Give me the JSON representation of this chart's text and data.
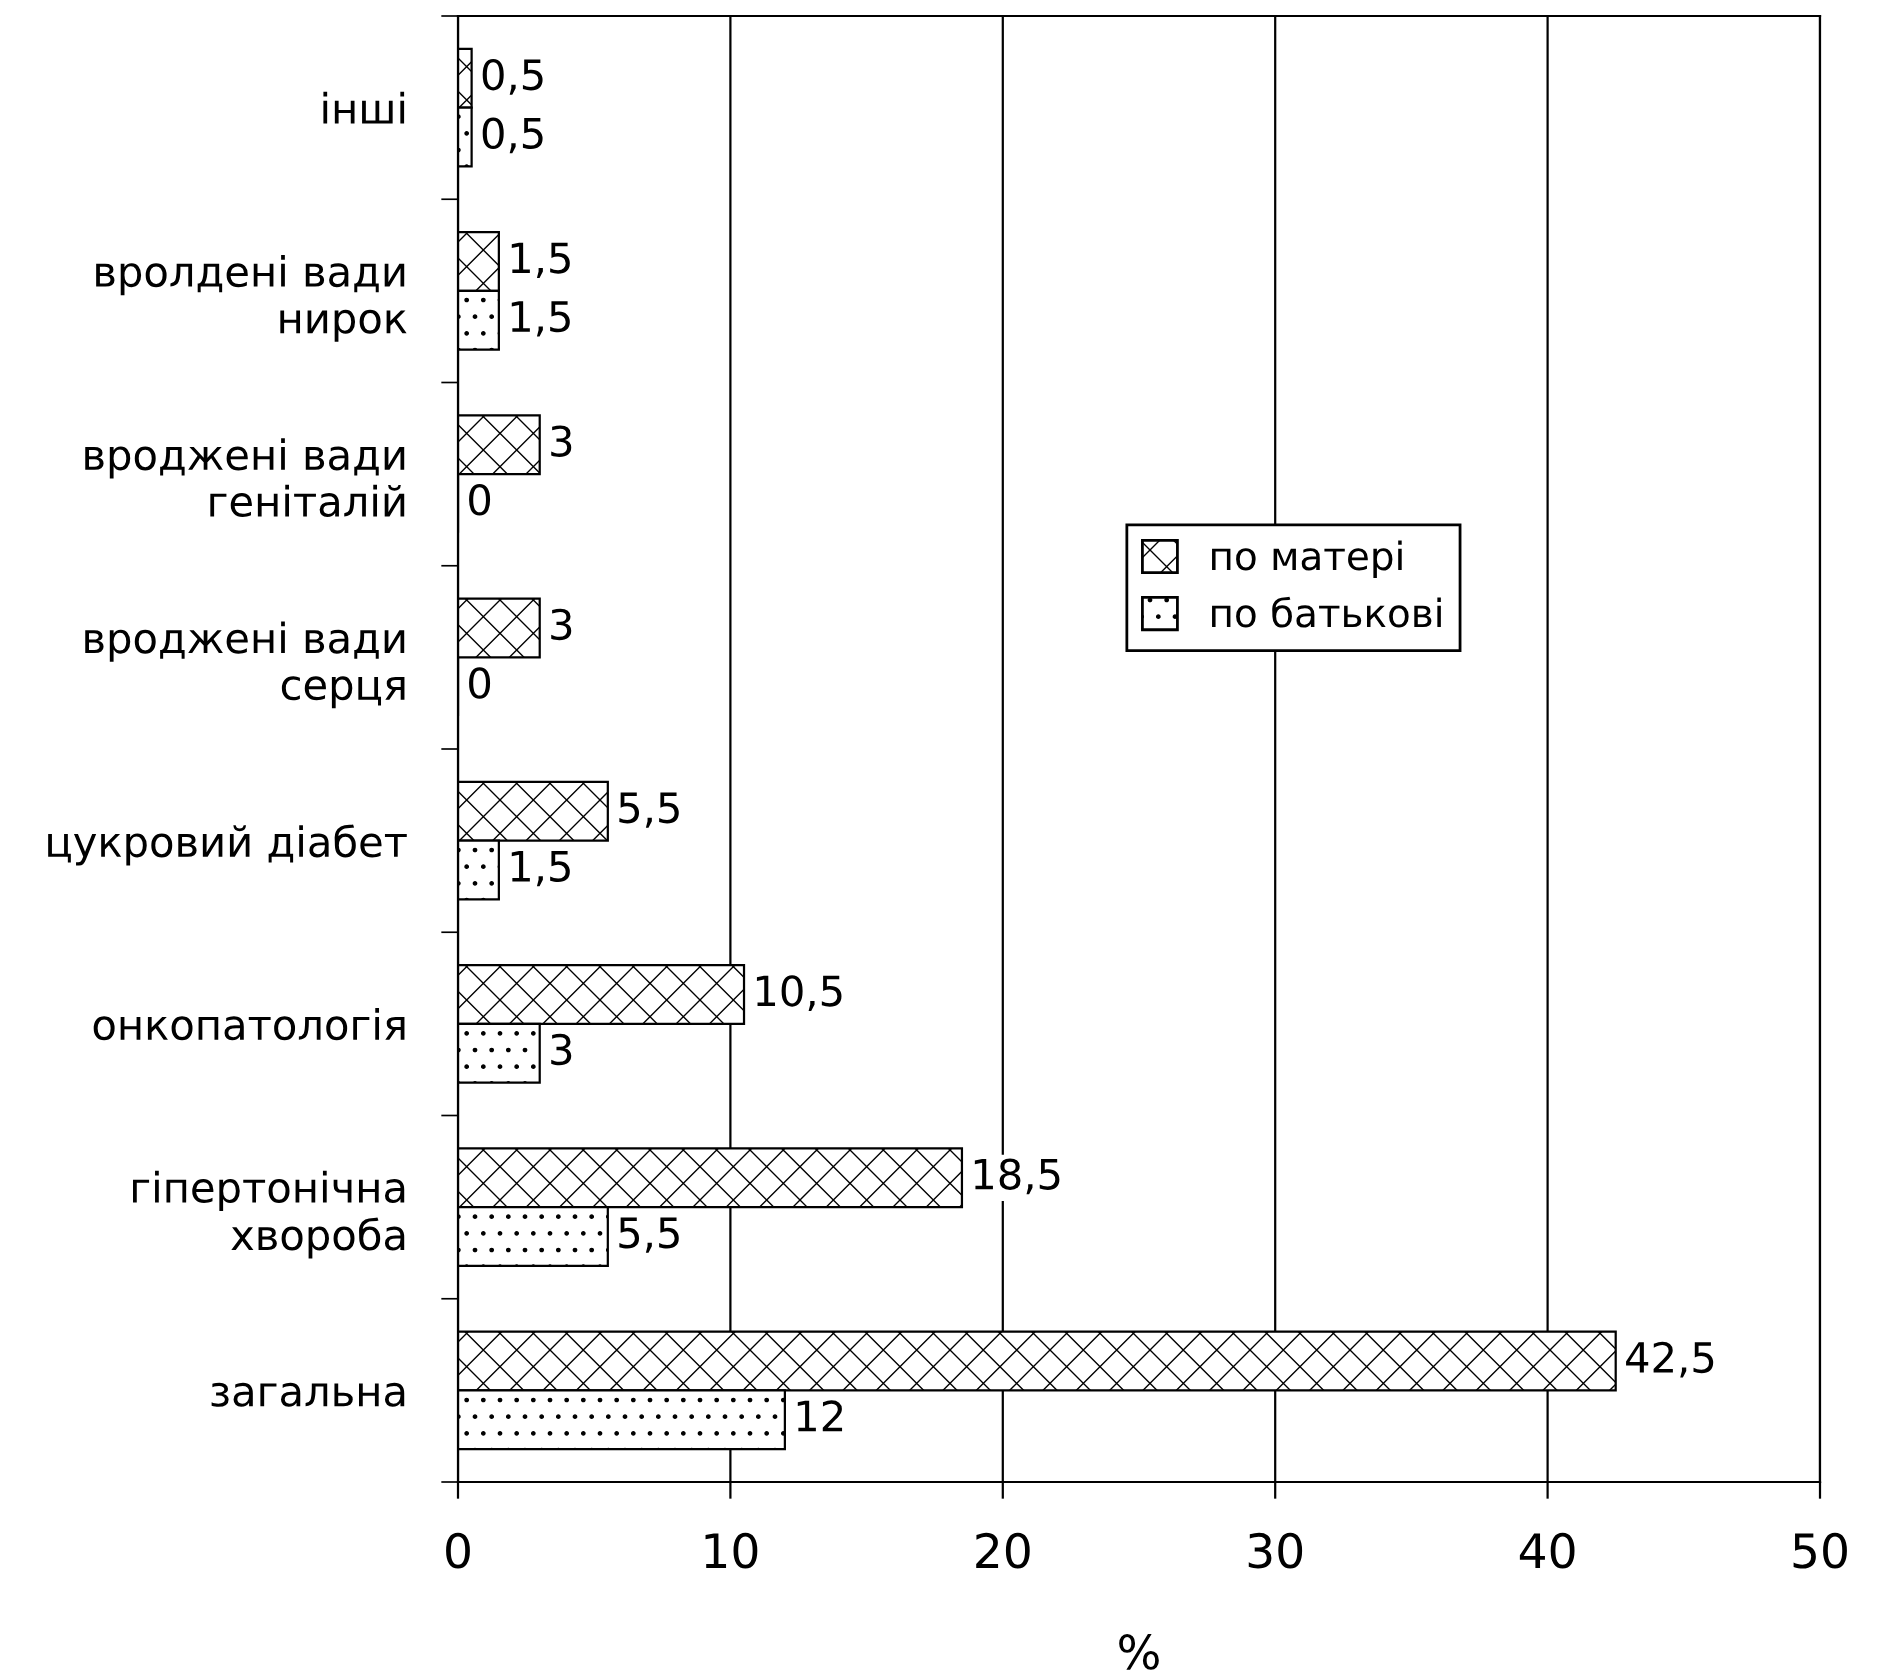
{
  "chart_data": {
    "type": "bar",
    "orientation": "horizontal",
    "xlabel": "%",
    "categories": [
      "інші",
      "вролдені вади\nнирок",
      "вроджені вади\nгеніталій",
      "вроджені вади\nсерця",
      "цукровий діабет",
      "онкопатологія",
      "гіпертонічна\nхвороба",
      "загальна"
    ],
    "series": [
      {
        "name": "по матері",
        "values": [
          0.5,
          1.5,
          3,
          3,
          5.5,
          10.5,
          18.5,
          42.5
        ],
        "value_labels": [
          "0,5",
          "1,5",
          "3",
          "3",
          "5,5",
          "10,5",
          "18,5",
          "42,5"
        ]
      },
      {
        "name": "по батькові",
        "values": [
          0.5,
          1.5,
          0,
          0,
          1.5,
          3,
          5.5,
          12
        ],
        "value_labels": [
          "0,5",
          "1,5",
          "0",
          "0",
          "1,5",
          "3",
          "5,5",
          "12"
        ]
      }
    ],
    "xlim": [
      0,
      50
    ],
    "xticks": [
      0,
      10,
      20,
      30,
      40,
      50
    ],
    "grid": "x",
    "legend": "right"
  }
}
